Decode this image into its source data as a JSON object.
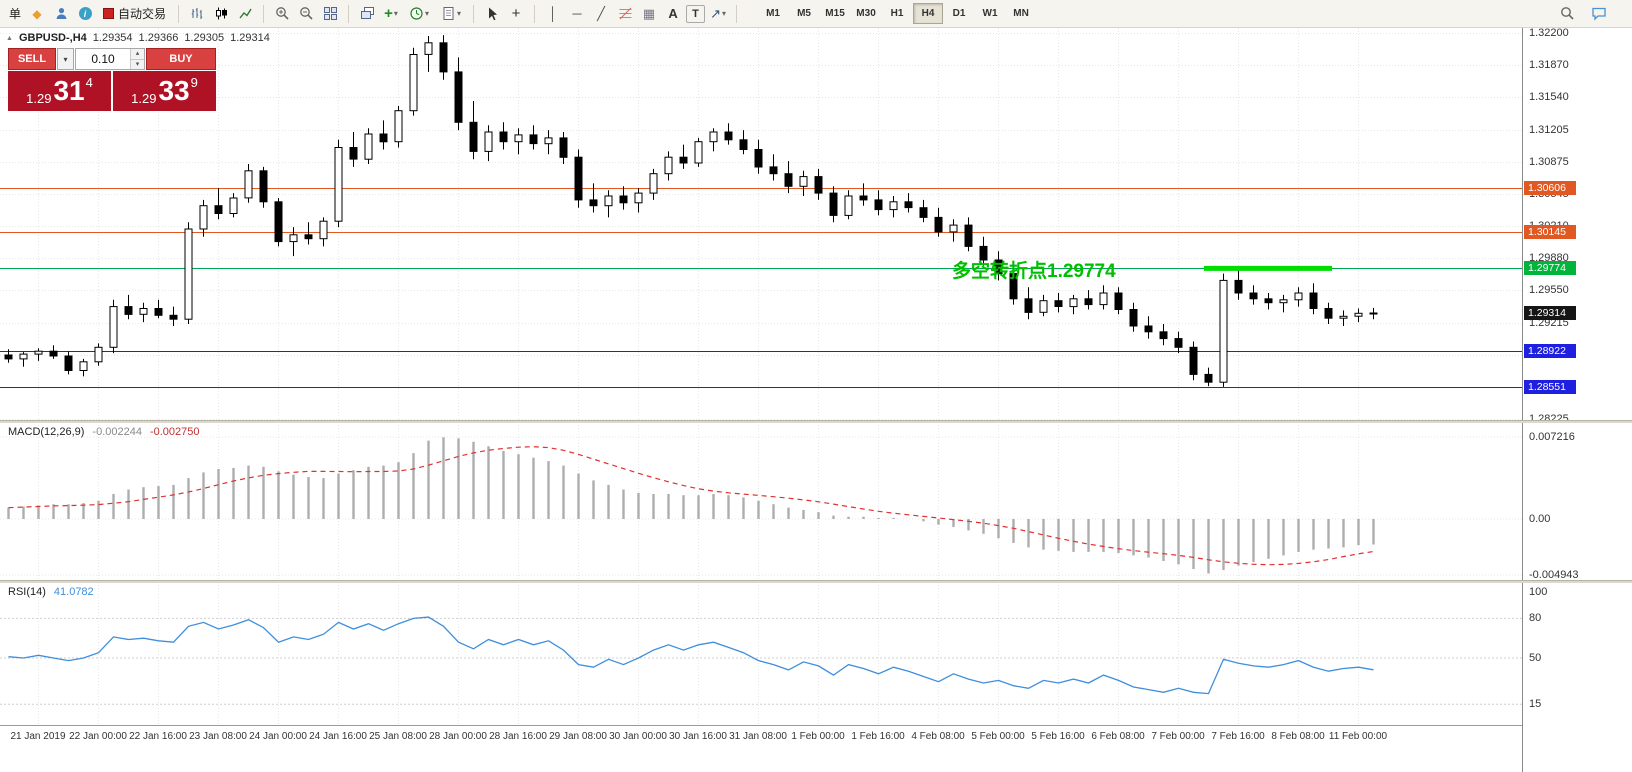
{
  "toolbar": {
    "new_order_label": "单",
    "auto_trading_label": "自动交易",
    "text_tool_label": "A",
    "label_tool_label": "T",
    "timeframes": [
      "M1",
      "M5",
      "M15",
      "M30",
      "H1",
      "H4",
      "D1",
      "W1",
      "MN"
    ],
    "active_timeframe": "H4",
    "glyphs": {
      "dropdown": "▾",
      "vline": "│",
      "hline": "─",
      "trendline": "╱",
      "arrows": "↗",
      "tile": "⊞",
      "diamond": "◆",
      "shapes": "▦",
      "crosshair": "+",
      "cursor": "↖",
      "collapse": "▲"
    },
    "icons": [
      "new-order",
      "chart-window",
      "profile",
      "info",
      "auto-trading",
      "bars-mode",
      "candles-mode",
      "line-mode",
      "zoom-in",
      "zoom-out",
      "tile-windows",
      "arrange-windows",
      "cascade-windows",
      "indicators",
      "periods",
      "templates",
      "cursor",
      "crosshair",
      "vertical-line",
      "horizontal-line",
      "trendline",
      "fibonacci",
      "shapes",
      "text",
      "text-label",
      "arrows",
      "search",
      "chat"
    ]
  },
  "chart_header": {
    "symbol": "GBPUSD-,H4",
    "open": "1.29354",
    "high": "1.29366",
    "low": "1.29305",
    "close": "1.29314"
  },
  "trade_panel": {
    "sell_label": "SELL",
    "buy_label": "BUY",
    "volume": "0.10",
    "spin_up": "▴",
    "spin_down": "▾",
    "sell_price": {
      "prefix": "1.29",
      "big": "31",
      "sup": "4"
    },
    "buy_price": {
      "prefix": "1.29",
      "big": "33",
      "sup": "9"
    }
  },
  "chart_data": [
    {
      "type": "candlestick",
      "symbol": "GBPUSD-",
      "timeframe": "H4",
      "ylim": [
        1.2821,
        1.32253
      ],
      "y_ticks": [
        "1.32200",
        "1.31870",
        "1.31540",
        "1.31205",
        "1.30875",
        "1.30545",
        "1.30210",
        "1.29880",
        "1.29550",
        "1.29215",
        "1.28885",
        "1.28225"
      ],
      "x_labels": [
        {
          "i": 3,
          "label": "21 Jan 2019"
        },
        {
          "i": 7,
          "label": "22 Jan 00:00"
        },
        {
          "i": 11,
          "label": "22 Jan 16:00"
        },
        {
          "i": 15,
          "label": "23 Jan 08:00"
        },
        {
          "i": 19,
          "label": "24 Jan 00:00"
        },
        {
          "i": 23,
          "label": "24 Jan 16:00"
        },
        {
          "i": 27,
          "label": "25 Jan 08:00"
        },
        {
          "i": 31,
          "label": "28 Jan 00:00"
        },
        {
          "i": 35,
          "label": "28 Jan 16:00"
        },
        {
          "i": 39,
          "label": "29 Jan 08:00"
        },
        {
          "i": 43,
          "label": "30 Jan 00:00"
        },
        {
          "i": 47,
          "label": "30 Jan 16:00"
        },
        {
          "i": 51,
          "label": "31 Jan 08:00"
        },
        {
          "i": 55,
          "label": "1 Feb 00:00"
        },
        {
          "i": 59,
          "label": "1 Feb 16:00"
        },
        {
          "i": 63,
          "label": "4 Feb 08:00"
        },
        {
          "i": 67,
          "label": "5 Feb 00:00"
        },
        {
          "i": 71,
          "label": "5 Feb 16:00"
        },
        {
          "i": 75,
          "label": "6 Feb 08:00"
        },
        {
          "i": 79,
          "label": "7 Feb 00:00"
        },
        {
          "i": 83,
          "label": "7 Feb 16:00"
        },
        {
          "i": 87,
          "label": "8 Feb 08:00"
        },
        {
          "i": 91,
          "label": "11 Feb 00:00"
        }
      ],
      "candles": [
        [
          1.2888,
          1.2894,
          1.288,
          1.2884
        ],
        [
          1.2884,
          1.2891,
          1.2876,
          1.2889
        ],
        [
          1.2889,
          1.2895,
          1.2882,
          1.2892
        ],
        [
          1.2892,
          1.2898,
          1.2884,
          1.2887
        ],
        [
          1.2887,
          1.2892,
          1.2868,
          1.2872
        ],
        [
          1.2872,
          1.2884,
          1.2866,
          1.2881
        ],
        [
          1.2881,
          1.29,
          1.2877,
          1.2896
        ],
        [
          1.2896,
          1.2945,
          1.289,
          1.2938
        ],
        [
          1.2938,
          1.295,
          1.2925,
          1.293
        ],
        [
          1.293,
          1.2942,
          1.2922,
          1.2936
        ],
        [
          1.2936,
          1.2945,
          1.2926,
          1.2929
        ],
        [
          1.2929,
          1.2938,
          1.2918,
          1.2925
        ],
        [
          1.2925,
          1.3025,
          1.292,
          1.3018
        ],
        [
          1.3018,
          1.3048,
          1.301,
          1.3042
        ],
        [
          1.3042,
          1.306,
          1.3028,
          1.3034
        ],
        [
          1.3034,
          1.3055,
          1.303,
          1.305
        ],
        [
          1.305,
          1.3085,
          1.3045,
          1.3078
        ],
        [
          1.3078,
          1.3082,
          1.304,
          1.3046
        ],
        [
          1.3046,
          1.305,
          1.3,
          1.3005
        ],
        [
          1.3005,
          1.302,
          1.299,
          1.3012
        ],
        [
          1.3012,
          1.3025,
          1.3002,
          1.3008
        ],
        [
          1.3008,
          1.303,
          1.3,
          1.3026
        ],
        [
          1.3026,
          1.311,
          1.302,
          1.3102
        ],
        [
          1.3102,
          1.3118,
          1.3082,
          1.309
        ],
        [
          1.309,
          1.3122,
          1.3085,
          1.3116
        ],
        [
          1.3116,
          1.313,
          1.31,
          1.3108
        ],
        [
          1.3108,
          1.3145,
          1.3102,
          1.314
        ],
        [
          1.314,
          1.3205,
          1.3135,
          1.3198
        ],
        [
          1.3198,
          1.3217,
          1.318,
          1.321
        ],
        [
          1.321,
          1.3218,
          1.3172,
          1.318
        ],
        [
          1.318,
          1.3195,
          1.312,
          1.3128
        ],
        [
          1.3128,
          1.315,
          1.309,
          1.3098
        ],
        [
          1.3098,
          1.3125,
          1.3088,
          1.3118
        ],
        [
          1.3118,
          1.3128,
          1.31,
          1.3108
        ],
        [
          1.3108,
          1.3122,
          1.3095,
          1.3115
        ],
        [
          1.3115,
          1.3125,
          1.31,
          1.3106
        ],
        [
          1.3106,
          1.312,
          1.3095,
          1.3112
        ],
        [
          1.3112,
          1.3118,
          1.3085,
          1.3092
        ],
        [
          1.3092,
          1.31,
          1.304,
          1.3048
        ],
        [
          1.3048,
          1.3065,
          1.3035,
          1.3042
        ],
        [
          1.3042,
          1.3058,
          1.303,
          1.3052
        ],
        [
          1.3052,
          1.3062,
          1.3038,
          1.3045
        ],
        [
          1.3045,
          1.306,
          1.3035,
          1.3055
        ],
        [
          1.3055,
          1.308,
          1.3048,
          1.3075
        ],
        [
          1.3075,
          1.3098,
          1.3068,
          1.3092
        ],
        [
          1.3092,
          1.3105,
          1.308,
          1.3086
        ],
        [
          1.3086,
          1.3112,
          1.3082,
          1.3108
        ],
        [
          1.3108,
          1.3122,
          1.3098,
          1.3118
        ],
        [
          1.3118,
          1.3127,
          1.3105,
          1.311
        ],
        [
          1.311,
          1.312,
          1.3095,
          1.31
        ],
        [
          1.31,
          1.311,
          1.3075,
          1.3082
        ],
        [
          1.3082,
          1.3095,
          1.3068,
          1.3075
        ],
        [
          1.3075,
          1.3088,
          1.3055,
          1.3062
        ],
        [
          1.3062,
          1.3078,
          1.3052,
          1.3072
        ],
        [
          1.3072,
          1.308,
          1.3048,
          1.3055
        ],
        [
          1.3055,
          1.3062,
          1.3025,
          1.3032
        ],
        [
          1.3032,
          1.3058,
          1.3028,
          1.3052
        ],
        [
          1.3052,
          1.3065,
          1.3042,
          1.3048
        ],
        [
          1.3048,
          1.3058,
          1.3032,
          1.3038
        ],
        [
          1.3038,
          1.3052,
          1.303,
          1.3046
        ],
        [
          1.3046,
          1.3055,
          1.3035,
          1.304
        ],
        [
          1.304,
          1.3048,
          1.3025,
          1.303
        ],
        [
          1.303,
          1.304,
          1.301,
          1.3015
        ],
        [
          1.3015,
          1.3028,
          1.3005,
          1.3022
        ],
        [
          1.3022,
          1.303,
          1.2995,
          1.3
        ],
        [
          1.3,
          1.301,
          1.298,
          1.2986
        ],
        [
          1.2986,
          1.2995,
          1.2965,
          1.2972
        ],
        [
          1.2972,
          1.298,
          1.294,
          1.2946
        ],
        [
          1.2946,
          1.2958,
          1.2925,
          1.2932
        ],
        [
          1.2932,
          1.295,
          1.2928,
          1.2944
        ],
        [
          1.2944,
          1.2952,
          1.2932,
          1.2938
        ],
        [
          1.2938,
          1.295,
          1.293,
          1.2946
        ],
        [
          1.2946,
          1.2955,
          1.2935,
          1.294
        ],
        [
          1.294,
          1.296,
          1.2935,
          1.2952
        ],
        [
          1.2952,
          1.2958,
          1.293,
          1.2935
        ],
        [
          1.2935,
          1.2942,
          1.2912,
          1.2918
        ],
        [
          1.2918,
          1.2928,
          1.2905,
          1.2912
        ],
        [
          1.2912,
          1.292,
          1.2898,
          1.2905
        ],
        [
          1.2905,
          1.2912,
          1.289,
          1.2896
        ],
        [
          1.2896,
          1.2902,
          1.2862,
          1.2868
        ],
        [
          1.2868,
          1.2875,
          1.2856,
          1.286
        ],
        [
          1.286,
          1.2972,
          1.28551,
          1.2965
        ],
        [
          1.2965,
          1.2978,
          1.2945,
          1.2952
        ],
        [
          1.2952,
          1.296,
          1.294,
          1.2946
        ],
        [
          1.2946,
          1.2952,
          1.2935,
          1.2942
        ],
        [
          1.2942,
          1.295,
          1.2932,
          1.2945
        ],
        [
          1.2945,
          1.2958,
          1.2938,
          1.2952
        ],
        [
          1.2952,
          1.2962,
          1.293,
          1.2936
        ],
        [
          1.2936,
          1.2942,
          1.292,
          1.2926
        ],
        [
          1.2926,
          1.2934,
          1.2918,
          1.2928
        ],
        [
          1.2928,
          1.2936,
          1.2922,
          1.2931
        ],
        [
          1.2931,
          1.29366,
          1.2925,
          1.29314
        ]
      ],
      "hlines": [
        {
          "price": 1.30606,
          "color": "#E25822"
        },
        {
          "price": 1.30145,
          "color": "#E25822"
        },
        {
          "price": 1.29774,
          "color": "#00A651"
        },
        {
          "price": 1.28922,
          "color": "#1F1FE0"
        },
        {
          "price": 1.28551,
          "color": "#1F1FE0"
        }
      ],
      "price_badges": [
        {
          "text": "1.30606",
          "bg": "#E25822"
        },
        {
          "text": "1.30145",
          "bg": "#E25822"
        },
        {
          "text": "1.29774",
          "bg": "#00B43C"
        },
        {
          "text": "1.29314",
          "bg": "#151515"
        },
        {
          "text": "1.28922",
          "bg": "#1F1FE0"
        },
        {
          "text": "1.28551",
          "bg": "#1F1FE0"
        }
      ],
      "thick_segment": {
        "price": 1.29774,
        "from_candle": 81,
        "to_candle": 89,
        "color": "#00DD00"
      },
      "annotation": {
        "text": "多空转折点1.29774",
        "color": "#00BE00"
      }
    },
    {
      "type": "bar",
      "name": "MACD",
      "label": "MACD(12,26,9)",
      "values": [
        "-0.002244",
        "-0.002750"
      ],
      "ylim": [
        -0.00537,
        0.00854
      ],
      "y_ticks": [
        {
          "label": "0.007216",
          "v": 0.007216
        },
        {
          "label": "0.00",
          "v": 0
        },
        {
          "label": "-0.004943",
          "v": -0.004943
        }
      ],
      "signal_period": 9,
      "colors": {
        "histogram": "#ADADAD",
        "signal": "#E03030"
      },
      "histogram": [
        0.001,
        0.0011,
        0.0012,
        0.0013,
        0.0013,
        0.0014,
        0.0016,
        0.0022,
        0.0026,
        0.0028,
        0.0029,
        0.003,
        0.0036,
        0.0041,
        0.0044,
        0.0045,
        0.0047,
        0.0046,
        0.0042,
        0.0039,
        0.0037,
        0.0036,
        0.004,
        0.0043,
        0.0046,
        0.0047,
        0.005,
        0.0058,
        0.0069,
        0.0072,
        0.0071,
        0.0068,
        0.0064,
        0.006,
        0.0057,
        0.0054,
        0.0051,
        0.0047,
        0.004,
        0.0034,
        0.003,
        0.0026,
        0.0023,
        0.0022,
        0.0022,
        0.0021,
        0.0021,
        0.0022,
        0.0021,
        0.0019,
        0.0016,
        0.0013,
        0.001,
        0.0008,
        0.0006,
        0.0003,
        0.0002,
        0.0002,
        0.0001,
        0.0001,
        0.0,
        -0.0002,
        -0.0005,
        -0.0007,
        -0.001,
        -0.0013,
        -0.0017,
        -0.0021,
        -0.0025,
        -0.0027,
        -0.0028,
        -0.0029,
        -0.0029,
        -0.0029,
        -0.003,
        -0.0032,
        -0.0034,
        -0.0037,
        -0.004,
        -0.0044,
        -0.0048,
        -0.0045,
        -0.0041,
        -0.0038,
        -0.0035,
        -0.0032,
        -0.0029,
        -0.0027,
        -0.0026,
        -0.0025,
        -0.0023,
        -0.002244
      ]
    },
    {
      "type": "line",
      "name": "RSI",
      "label": "RSI(14)",
      "value": "41.0782",
      "ylim": [
        -0.8,
        107.6
      ],
      "levels": [
        80,
        50,
        15
      ],
      "y_ticks": [
        {
          "label": "100",
          "v": 100
        },
        {
          "label": "80",
          "v": 80
        },
        {
          "label": "50",
          "v": 50
        },
        {
          "label": "15",
          "v": 15
        }
      ],
      "color": "#3E8EDE",
      "values": [
        51,
        50,
        52,
        50,
        48,
        50,
        54,
        66,
        64,
        65,
        63,
        62,
        74,
        77,
        72,
        75,
        79,
        73,
        62,
        66,
        64,
        68,
        77,
        72,
        76,
        71,
        76,
        80,
        81,
        74,
        62,
        57,
        64,
        60,
        64,
        60,
        63,
        56,
        45,
        43,
        49,
        45,
        50,
        56,
        60,
        56,
        60,
        62,
        58,
        54,
        48,
        45,
        41,
        47,
        44,
        37,
        45,
        42,
        38,
        43,
        40,
        36,
        32,
        38,
        34,
        31,
        33,
        29,
        27,
        33,
        31,
        34,
        31,
        37,
        33,
        28,
        26,
        24,
        27,
        24,
        23,
        49,
        46,
        44,
        43,
        45,
        48,
        43,
        40,
        42,
        43,
        41.08
      ]
    }
  ]
}
